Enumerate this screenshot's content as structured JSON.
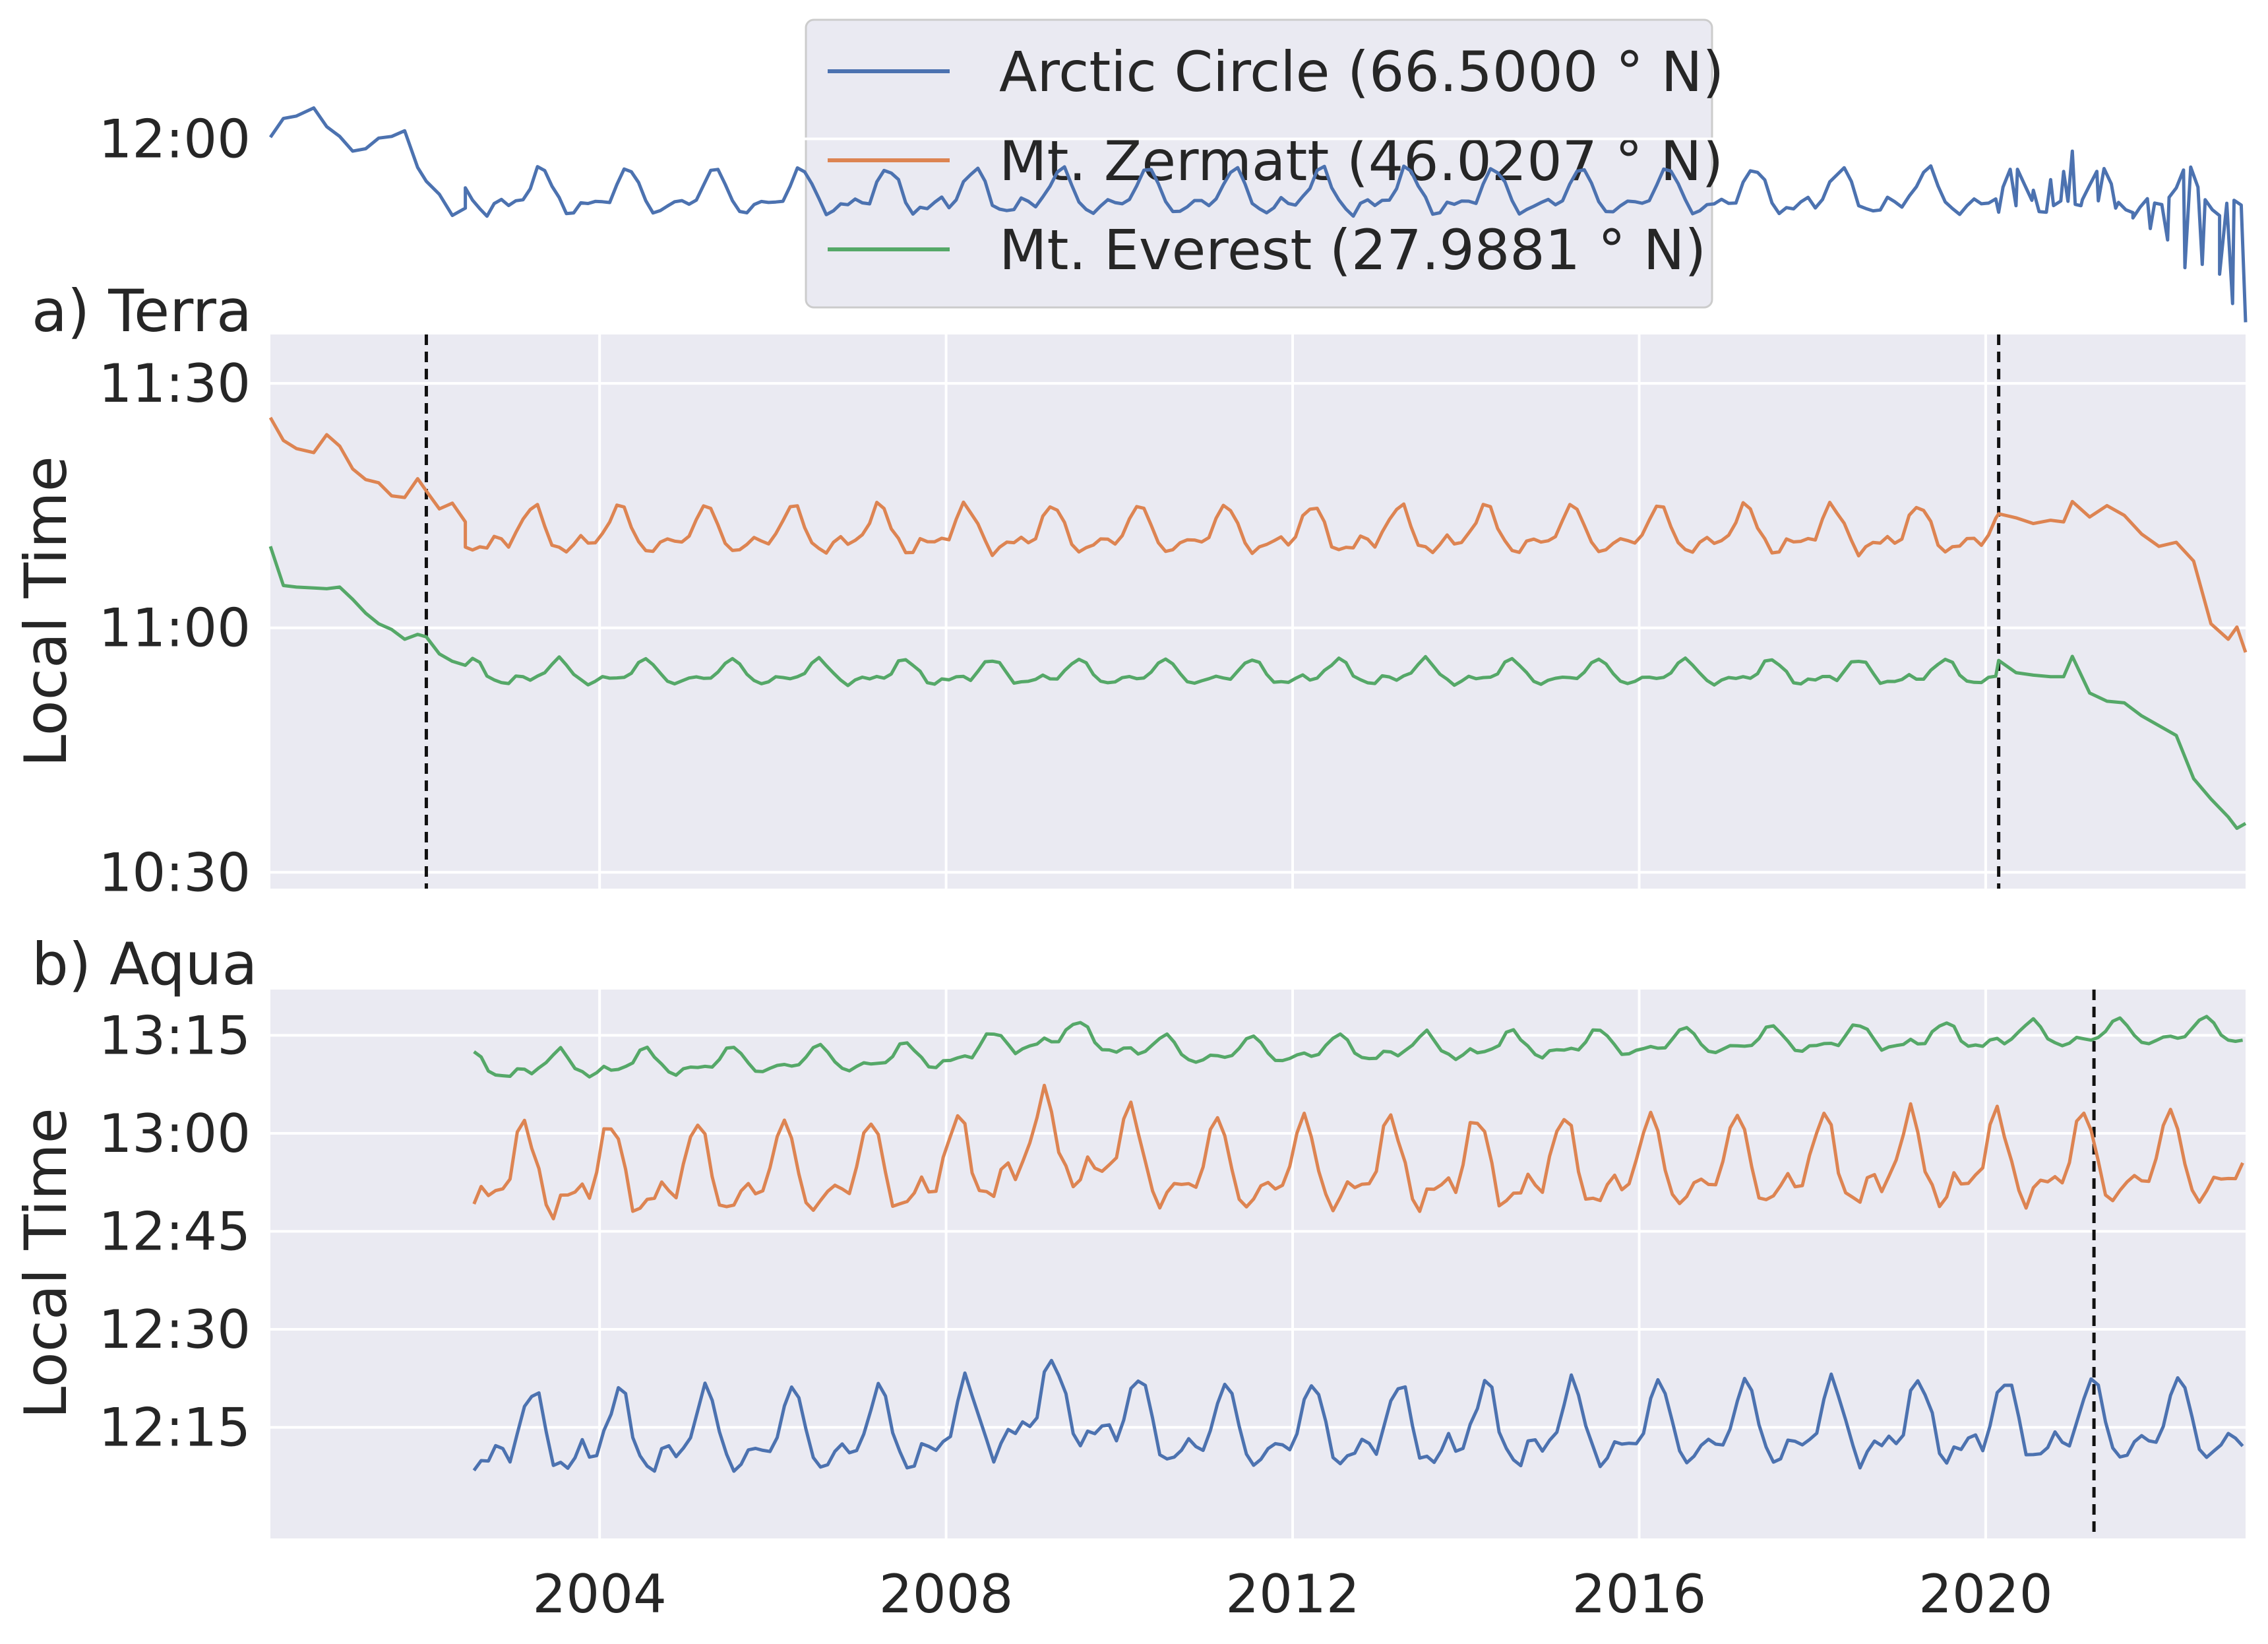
{
  "legend": {
    "entries": [
      {
        "label": "Arctic Circle (66.5000$^\\circ$N)",
        "display": "Arctic Circle (66.5000 ° N)",
        "color": "#4c72b0"
      },
      {
        "label": "Mt. Zermatt (46.0207$^\\circ$N)",
        "display": "Mt. Zermatt  (46.0207 ° N)",
        "color": "#dd8452"
      },
      {
        "label": "Mt. Everest (27.9881$^\\circ$N)",
        "display": "Mt. Everest  (27.9881 ° N)",
        "color": "#55a868"
      }
    ]
  },
  "chart_data": [
    {
      "panel": "a",
      "type": "line",
      "title": "a) Terra",
      "xlabel": "",
      "ylabel": "Local Time",
      "xlim": [
        2000.2,
        2023.0
      ],
      "ylim_minutes": [
        628,
        696
      ],
      "yticks": [
        {
          "label": "10:30",
          "minutes": 630
        },
        {
          "label": "11:00",
          "minutes": 660
        },
        {
          "label": "11:30",
          "minutes": 690
        },
        {
          "label": "12:00",
          "minutes": 720
        }
      ],
      "xticks": [
        {
          "label": "2004",
          "x": 2004
        },
        {
          "label": "2008",
          "x": 2008
        },
        {
          "label": "2012",
          "x": 2012
        },
        {
          "label": "2016",
          "x": 2016
        },
        {
          "label": "2020",
          "x": 2020
        }
      ],
      "vlines": [
        2002.0,
        2020.15
      ],
      "grid": true,
      "series": [
        {
          "name": "Arctic Circle (66.5000°N)",
          "color": "#4c72b0",
          "segments": [
            {
              "x": [
                2000.2,
                2000.35,
                2000.5,
                2000.7,
                2000.85,
                2001.0,
                2001.15,
                2001.3,
                2001.45,
                2001.6,
                2001.75,
                2001.9,
                2002.0,
                2002.15,
                2002.3,
                2002.45
              ],
              "y": [
                720.2,
                722.5,
                722.8,
                723.8,
                721.5,
                720.3,
                718.5,
                718.8,
                720.1,
                720.3,
                721.0,
                716.5,
                714.8,
                713.2,
                710.6,
                711.5
              ]
            },
            {
              "x": [
                2002.45,
                2023.0
              ],
              "model": {
                "mean": 713.0,
                "amp": 2.2,
                "phase": 0.3
              }
            },
            {
              "x": [
                2020.15,
                2020.35,
                2020.55,
                2020.75,
                2020.9,
                2021.0,
                2021.1,
                2021.3,
                2021.5,
                2021.7,
                2021.9,
                2022.1,
                2022.3,
                2022.5,
                2022.7,
                2022.85,
                2023.0
              ],
              "y": [
                711.0,
                711.8,
                713.7,
                715.0,
                716.0,
                718.5,
                711.8,
                712.4,
                711.5,
                710.3,
                709.0,
                707.6,
                704.2,
                704.6,
                703.4,
                699.8,
                697.5
              ]
            }
          ]
        },
        {
          "name": "Mt. Zermatt (46.0207°N)",
          "color": "#dd8452",
          "segments": [
            {
              "x": [
                2000.2,
                2000.35,
                2000.5,
                2000.7,
                2000.85,
                2001.0,
                2001.15,
                2001.3,
                2001.45,
                2001.6,
                2001.75,
                2001.9,
                2002.0,
                2002.15,
                2002.3,
                2002.45
              ],
              "y": [
                685.8,
                683.0,
                682.0,
                681.5,
                683.7,
                682.3,
                679.5,
                678.2,
                677.8,
                676.2,
                676.0,
                678.3,
                676.8,
                674.6,
                675.3,
                673.0
              ]
            },
            {
              "x": [
                2002.45,
                2020.15
              ],
              "model": {
                "mean": 671.5,
                "amp": 2.3,
                "phase": 0.2
              }
            },
            {
              "x": [
                2020.15,
                2020.35,
                2020.55,
                2020.75,
                2020.9,
                2021.0,
                2021.2,
                2021.4,
                2021.6,
                2021.8,
                2022.0,
                2022.2,
                2022.4,
                2022.6,
                2022.8,
                2022.9,
                2023.0
              ],
              "y": [
                674.0,
                673.5,
                672.8,
                673.2,
                673.0,
                675.5,
                673.6,
                675.0,
                673.8,
                671.5,
                670.0,
                670.5,
                668.2,
                660.5,
                658.6,
                660.1,
                657.0
              ]
            }
          ]
        },
        {
          "name": "Mt. Everest (27.9881°N)",
          "color": "#55a868",
          "segments": [
            {
              "x": [
                2000.2,
                2000.35,
                2000.5,
                2000.7,
                2000.85,
                2001.0,
                2001.15,
                2001.3,
                2001.45,
                2001.6,
                2001.75,
                2001.9,
                2002.0,
                2002.15,
                2002.3,
                2002.45
              ],
              "y": [
                670.0,
                665.2,
                665.0,
                664.9,
                664.8,
                665.0,
                663.5,
                661.8,
                660.5,
                659.8,
                658.6,
                659.2,
                658.9,
                656.8,
                655.9,
                655.4
              ]
            },
            {
              "x": [
                2002.45,
                2020.15
              ],
              "model": {
                "mean": 654.3,
                "amp": 1.2,
                "phase": 0.5
              }
            },
            {
              "x": [
                2020.15,
                2020.35,
                2020.55,
                2020.75,
                2020.9,
                2021.0,
                2021.2,
                2021.4,
                2021.6,
                2021.8,
                2022.0,
                2022.2,
                2022.4,
                2022.6,
                2022.8,
                2022.9,
                2023.0
              ],
              "y": [
                656.0,
                654.5,
                654.2,
                654.0,
                654.0,
                656.5,
                652.0,
                651.0,
                650.8,
                649.2,
                648.0,
                646.8,
                641.5,
                639.0,
                636.8,
                635.4,
                636.0
              ]
            }
          ]
        }
      ]
    },
    {
      "panel": "b",
      "type": "line",
      "title": "b) Aqua",
      "xlabel": "",
      "ylabel": "Local Time",
      "xlim": [
        2000.2,
        2023.0
      ],
      "ylim_minutes": [
        718,
        802
      ],
      "yticks": [
        {
          "label": "12:15",
          "minutes": 735
        },
        {
          "label": "12:30",
          "minutes": 750
        },
        {
          "label": "12:45",
          "minutes": 765
        },
        {
          "label": "13:00",
          "minutes": 780
        },
        {
          "label": "13:15",
          "minutes": 795
        }
      ],
      "xticks": [
        {
          "label": "2004",
          "x": 2004
        },
        {
          "label": "2008",
          "x": 2008
        },
        {
          "label": "2012",
          "x": 2012
        },
        {
          "label": "2016",
          "x": 2016
        },
        {
          "label": "2020",
          "x": 2020
        }
      ],
      "vlines": [
        2021.25
      ],
      "grid": true,
      "series": [
        {
          "name": "Arctic Circle (66.5000°N)",
          "color": "#4c72b0",
          "segments": [
            {
              "x": [
                2002.55,
                2023.0
              ],
              "model": {
                "mean": 733.0,
                "amp": 5.0,
                "phase": 0.2,
                "trend": [
                  0,
                  2.0
                ],
                "bump": [
                  2009.3,
                  4.0
                ]
              }
            }
          ]
        },
        {
          "name": "Mt. Zermatt (46.0207°N)",
          "color": "#dd8452",
          "segments": [
            {
              "x": [
                2002.55,
                2023.0
              ],
              "model": {
                "mean": 773.0,
                "amp": 5.5,
                "phase": 0.1,
                "trend": [
                  0,
                  2.0
                ],
                "bump": [
                  2009.3,
                  4.0
                ]
              }
            }
          ]
        },
        {
          "name": "Mt. Everest (27.9881°N)",
          "color": "#55a868",
          "segments": [
            {
              "x": [
                2002.55,
                2023.0
              ],
              "model": {
                "mean": 793.0,
                "amp": 1.6,
                "phase": 0.5,
                "trend": [
                  -3.0,
                  2.5
                ],
                "bump": [
                  2009.3,
                  3.0
                ]
              }
            }
          ]
        }
      ]
    }
  ]
}
